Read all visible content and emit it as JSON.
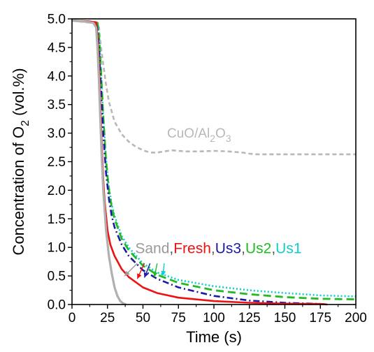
{
  "chart_data": {
    "type": "line",
    "xlabel": "Time (s)",
    "ylabel_parts": {
      "main": "Concentration of O",
      "sub": "2",
      "tail": " (vol.%)"
    },
    "xlim": [
      0,
      200
    ],
    "ylim": [
      0,
      5
    ],
    "x_ticks": [
      0,
      25,
      50,
      75,
      100,
      125,
      150,
      175,
      200
    ],
    "y_ticks": [
      0.0,
      0.5,
      1.0,
      1.5,
      2.0,
      2.5,
      3.0,
      3.5,
      4.0,
      4.5,
      5.0
    ],
    "y_tick_labels": [
      "0.0",
      "0.5",
      "1.0",
      "1.5",
      "2.0",
      "2.5",
      "3.0",
      "3.5",
      "4.0",
      "4.5",
      "5.0"
    ],
    "grid": false,
    "annotation": {
      "parts": [
        "CuO/Al",
        "2",
        "O",
        "3"
      ],
      "color": "#b8b8b8"
    },
    "legend_labels": [
      {
        "name": "Sand",
        "color": "#9a9a9a"
      },
      {
        "name": ",",
        "color": "#555555"
      },
      {
        "name": "Fresh",
        "color": "#ee1111"
      },
      {
        "name": ",",
        "color": "#555555"
      },
      {
        "name": "Us3",
        "color": "#1a1aa8"
      },
      {
        "name": ",",
        "color": "#555555"
      },
      {
        "name": "Us2",
        "color": "#22bb22"
      },
      {
        "name": ",",
        "color": "#555555"
      },
      {
        "name": "Us1",
        "color": "#11cccc"
      }
    ],
    "series": [
      {
        "key": "cuo",
        "color": "#b8b8b8",
        "dash": "6,4",
        "width": 2.6,
        "x": [
          0,
          10,
          17,
          19,
          20,
          21,
          22,
          24,
          26,
          30,
          35,
          40,
          45,
          50,
          55,
          60,
          65,
          70,
          75,
          80,
          90,
          100,
          110,
          120,
          125,
          130,
          140,
          150,
          175,
          200
        ],
        "y": [
          4.97,
          4.94,
          4.92,
          4.85,
          4.6,
          4.4,
          4.2,
          3.85,
          3.55,
          3.2,
          2.98,
          2.85,
          2.76,
          2.7,
          2.66,
          2.66,
          2.68,
          2.7,
          2.69,
          2.68,
          2.68,
          2.69,
          2.68,
          2.66,
          2.64,
          2.63,
          2.63,
          2.63,
          2.63,
          2.63
        ]
      },
      {
        "key": "sand",
        "color": "#b0b0b0",
        "dash": "",
        "width": 3.2,
        "x": [
          0,
          10,
          15,
          17,
          18,
          19,
          20,
          21,
          22,
          24,
          26,
          28,
          30,
          32,
          34,
          36,
          37,
          38
        ],
        "y": [
          4.97,
          4.95,
          4.93,
          4.85,
          4.5,
          3.9,
          3.2,
          2.55,
          2.0,
          1.3,
          0.85,
          0.55,
          0.3,
          0.15,
          0.06,
          0.02,
          0.01,
          0.0
        ]
      },
      {
        "key": "fresh",
        "color": "#ee1111",
        "dash": "",
        "width": 2.6,
        "x": [
          0,
          10,
          17,
          18,
          19,
          20,
          21,
          22,
          23,
          25,
          27,
          30,
          35,
          40,
          50,
          60,
          75,
          100,
          125,
          150,
          175,
          180
        ],
        "y": [
          4.97,
          4.96,
          4.94,
          4.7,
          4.2,
          3.5,
          2.8,
          2.2,
          1.8,
          1.3,
          1.05,
          0.85,
          0.62,
          0.48,
          0.3,
          0.2,
          0.12,
          0.06,
          0.03,
          0.015,
          0.01,
          0.0
        ]
      },
      {
        "key": "us3",
        "color": "#1a1aa8",
        "dash": "9,4,2,4",
        "width": 2.6,
        "x": [
          0,
          10,
          17,
          18,
          19,
          20,
          21,
          22,
          24,
          26,
          28,
          30,
          35,
          40,
          50,
          60,
          75,
          100,
          125,
          150,
          175,
          180
        ],
        "y": [
          4.97,
          4.96,
          4.94,
          4.8,
          4.5,
          4.0,
          3.5,
          3.0,
          2.3,
          1.85,
          1.55,
          1.35,
          1.05,
          0.85,
          0.6,
          0.45,
          0.3,
          0.15,
          0.07,
          0.03,
          0.01,
          0.0
        ]
      },
      {
        "key": "us2",
        "color": "#22bb22",
        "dash": "11,6",
        "width": 2.8,
        "x": [
          0,
          10,
          18,
          19,
          20,
          21,
          22,
          24,
          26,
          28,
          30,
          35,
          40,
          50,
          60,
          75,
          100,
          125,
          150,
          175,
          200
        ],
        "y": [
          4.97,
          4.96,
          4.93,
          4.7,
          4.3,
          3.8,
          3.3,
          2.5,
          2.0,
          1.7,
          1.5,
          1.15,
          0.95,
          0.68,
          0.52,
          0.38,
          0.25,
          0.18,
          0.13,
          0.1,
          0.09
        ]
      },
      {
        "key": "us1",
        "color": "#11cccc",
        "dash": "2,3",
        "width": 2.6,
        "x": [
          0,
          10,
          18,
          19,
          20,
          21,
          22,
          24,
          26,
          28,
          30,
          35,
          40,
          50,
          60,
          75,
          100,
          125,
          150,
          175,
          200
        ],
        "y": [
          4.97,
          4.96,
          4.93,
          4.7,
          4.3,
          3.8,
          3.3,
          2.55,
          2.05,
          1.75,
          1.55,
          1.2,
          1.0,
          0.72,
          0.56,
          0.43,
          0.32,
          0.25,
          0.2,
          0.16,
          0.14
        ]
      }
    ],
    "arrows": [
      {
        "color": "#9a9a9a",
        "from": [
          46,
          0.72
        ],
        "to": [
          37,
          0.5
        ]
      },
      {
        "color": "#ee1111",
        "from": [
          51,
          0.72
        ],
        "to": [
          46,
          0.45
        ]
      },
      {
        "color": "#1a1aa8",
        "from": [
          55,
          0.72
        ],
        "to": [
          51,
          0.47
        ]
      },
      {
        "color": "#22bb22",
        "from": [
          60,
          0.72
        ],
        "to": [
          58,
          0.48
        ]
      },
      {
        "color": "#11cccc",
        "from": [
          65,
          0.72
        ],
        "to": [
          64,
          0.5
        ]
      }
    ]
  }
}
